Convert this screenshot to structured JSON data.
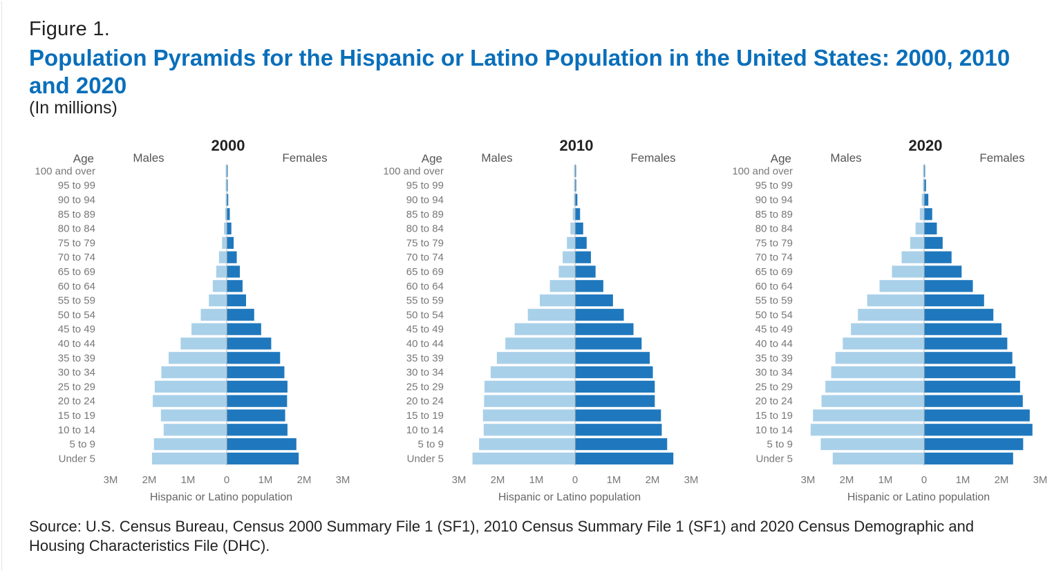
{
  "figure": {
    "label": "Figure 1.",
    "title": "Population Pyramids for the Hispanic or Latino Population in the United States: 2000, 2010 and 2020",
    "subtitle": "(In millions)",
    "source": "Source: U.S. Census Bureau, Census 2000 Summary File 1 (SF1), 2010 Census Summary File 1 (SF1) and 2020 Census Demographic and Housing Characteristics File (DHC)."
  },
  "colors": {
    "males": "#a9d0e9",
    "females": "#1f78bd",
    "axis": "#bbbbbb"
  },
  "chart_data": [
    {
      "type": "bar",
      "title": "2000",
      "age_header": "Age",
      "males_label": "Males",
      "females_label": "Females",
      "xlabel": "Hispanic or Latino population",
      "xlim": [
        -3,
        3
      ],
      "xticks": [
        "3M",
        "2M",
        "1M",
        "0",
        "1M",
        "2M",
        "3M"
      ],
      "categories": [
        "100 and over",
        "95 to 99",
        "90 to 94",
        "85 to 89",
        "80 to 84",
        "75 to 79",
        "70 to 74",
        "65 to 69",
        "60 to 64",
        "55 to 59",
        "50 to 54",
        "45 to 49",
        "40 to 44",
        "35 to 39",
        "30 to 34",
        "25 to 29",
        "20 to 24",
        "15 to 19",
        "10 to 14",
        "5 to 9",
        "Under 5"
      ],
      "series": [
        {
          "name": "Males",
          "values": [
            0.005,
            0.01,
            0.02,
            0.04,
            0.07,
            0.12,
            0.2,
            0.27,
            0.36,
            0.46,
            0.67,
            0.91,
            1.19,
            1.5,
            1.69,
            1.86,
            1.91,
            1.7,
            1.63,
            1.88,
            1.93
          ]
        },
        {
          "name": "Females",
          "values": [
            0.01,
            0.02,
            0.04,
            0.08,
            0.12,
            0.18,
            0.26,
            0.34,
            0.41,
            0.5,
            0.71,
            0.89,
            1.15,
            1.38,
            1.49,
            1.57,
            1.56,
            1.51,
            1.57,
            1.8,
            1.86
          ]
        }
      ]
    },
    {
      "type": "bar",
      "title": "2010",
      "age_header": "Age",
      "males_label": "Males",
      "females_label": "Females",
      "xlabel": "Hispanic or Latino population",
      "xlim": [
        -3,
        3
      ],
      "xticks": [
        "3M",
        "2M",
        "1M",
        "0",
        "1M",
        "2M",
        "3M"
      ],
      "categories": [
        "100 and over",
        "95 to 99",
        "90 to 94",
        "85 to 89",
        "80 to 84",
        "75 to 79",
        "70 to 74",
        "65 to 69",
        "60 to 64",
        "55 to 59",
        "50 to 54",
        "45 to 49",
        "40 to 44",
        "35 to 39",
        "30 to 34",
        "25 to 29",
        "20 to 24",
        "15 to 19",
        "10 to 14",
        "5 to 9",
        "Under 5"
      ],
      "series": [
        {
          "name": "Males",
          "values": [
            0.005,
            0.01,
            0.03,
            0.06,
            0.12,
            0.21,
            0.32,
            0.42,
            0.65,
            0.91,
            1.22,
            1.56,
            1.8,
            2.02,
            2.18,
            2.34,
            2.35,
            2.38,
            2.36,
            2.48,
            2.65
          ]
        },
        {
          "name": "Females",
          "values": [
            0.01,
            0.03,
            0.06,
            0.13,
            0.21,
            0.3,
            0.41,
            0.53,
            0.73,
            0.98,
            1.26,
            1.51,
            1.72,
            1.93,
            2.01,
            2.06,
            2.06,
            2.22,
            2.24,
            2.38,
            2.54
          ]
        }
      ]
    },
    {
      "type": "bar",
      "title": "2020",
      "age_header": "Age",
      "males_label": "Males",
      "females_label": "Females",
      "xlabel": "Hispanic or Latino population",
      "xlim": [
        -3,
        3
      ],
      "xticks": [
        "3M",
        "2M",
        "1M",
        "0",
        "1M",
        "2M",
        "3M"
      ],
      "categories": [
        "100 and over",
        "95 to 99",
        "90 to 94",
        "85 to 89",
        "80 to 84",
        "75 to 79",
        "70 to 74",
        "65 to 69",
        "60 to 64",
        "55 to 59",
        "50 to 54",
        "45 to 49",
        "40 to 44",
        "35 to 39",
        "30 to 34",
        "25 to 29",
        "20 to 24",
        "15 to 19",
        "10 to 14",
        "5 to 9",
        "Under 5"
      ],
      "series": [
        {
          "name": "Males",
          "values": [
            0.01,
            0.03,
            0.06,
            0.11,
            0.22,
            0.36,
            0.58,
            0.83,
            1.15,
            1.47,
            1.71,
            1.89,
            2.1,
            2.29,
            2.4,
            2.55,
            2.65,
            2.87,
            2.93,
            2.67,
            2.36
          ]
        },
        {
          "name": "Females",
          "values": [
            0.02,
            0.05,
            0.11,
            0.21,
            0.33,
            0.48,
            0.71,
            0.97,
            1.26,
            1.55,
            1.79,
            2.0,
            2.15,
            2.28,
            2.36,
            2.48,
            2.55,
            2.73,
            2.8,
            2.56,
            2.3
          ]
        }
      ]
    }
  ]
}
